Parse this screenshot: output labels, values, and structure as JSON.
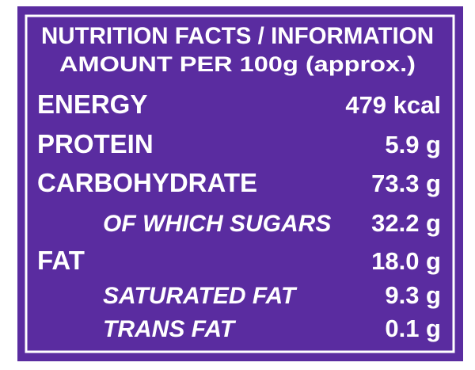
{
  "header": {
    "title": "NUTRITION FACTS / INFORMATION",
    "subtitle": "AMOUNT PER 100g (approx.)"
  },
  "rows": [
    {
      "label": "ENERGY",
      "value": "479 kcal"
    },
    {
      "label": "PROTEIN",
      "value": "5.9 g"
    },
    {
      "label": "CARBOHYDRATE",
      "value": "73.3 g",
      "sub": [
        {
          "label": "OF WHICH SUGARS",
          "value": "32.2 g"
        }
      ]
    },
    {
      "label": "FAT",
      "value": "18.0 g",
      "sub": [
        {
          "label": "SATURATED FAT",
          "value": "9.3 g"
        },
        {
          "label": "TRANS FAT",
          "value": "0.1 g"
        }
      ]
    }
  ]
}
